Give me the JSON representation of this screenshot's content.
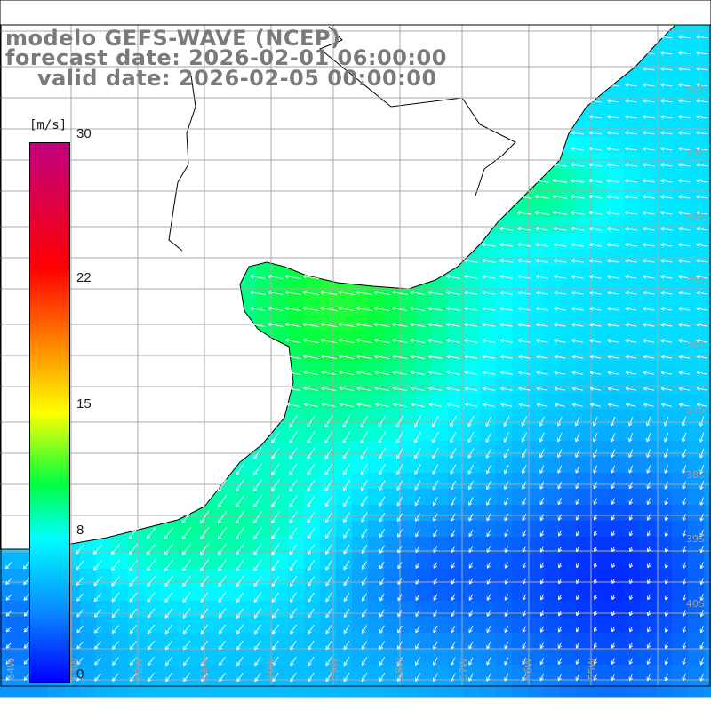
{
  "title": {
    "line1": "modelo GEFS-WAVE (NCEP)",
    "line2": "forecast date: 2026-02-01 06:00:00",
    "line3": "valid date: 2026-02-05 00:00:00"
  },
  "colorbar": {
    "unit": "[m/s]",
    "ticks": [
      {
        "label": "30",
        "value": 30
      },
      {
        "label": "22",
        "value": 22
      },
      {
        "label": "15",
        "value": 15
      },
      {
        "label": "8",
        "value": 8
      },
      {
        "label": "0",
        "value": 0
      }
    ],
    "stops": [
      {
        "value": 0,
        "color": "#0000ff"
      },
      {
        "value": 4,
        "color": "#0a8cff"
      },
      {
        "value": 8,
        "color": "#00ffff"
      },
      {
        "value": 11,
        "color": "#00ff40"
      },
      {
        "value": 15,
        "color": "#ffff00"
      },
      {
        "value": 19,
        "color": "#ff8000"
      },
      {
        "value": 23,
        "color": "#ff0000"
      },
      {
        "value": 30,
        "color": "#c00080"
      }
    ]
  },
  "map": {
    "latitude_labels": [
      "32S",
      "33S",
      "34S",
      "35S",
      "36S",
      "37S",
      "38S",
      "39S",
      "40S"
    ],
    "longitude_labels": [
      "64W",
      "63W",
      "62W",
      "61W",
      "60W",
      "59W",
      "58W",
      "57W",
      "56W",
      "55W"
    ],
    "land_color": "#ffffff",
    "grid_color": "#a8a8a8",
    "arrow_color": "#ffffff"
  }
}
